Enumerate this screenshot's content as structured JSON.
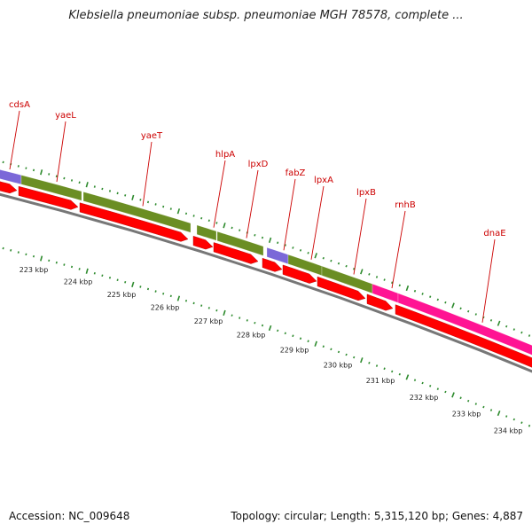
{
  "title": "Klebsiella pneumoniae subsp. pneumoniae MGH 78578, complete ...",
  "footer": {
    "accession": "Accession: NC_009648",
    "summary": "Topology: circular; Length: 5,315,120 bp; Genes: 4,887"
  },
  "colors": {
    "gene_label": "#cc0000",
    "cds": "#ff0000",
    "lavender": "#7b68d8",
    "olive": "#6b8e23",
    "magenta": "#ff1493",
    "backbone": "#777777",
    "ruler": "#2e8b2e"
  },
  "gene_labels": [
    "cdsA",
    "yaeL",
    "yaeT",
    "hlpA",
    "lpxD",
    "fabZ",
    "lpxA",
    "lpxB",
    "rnhB",
    "dnaE"
  ],
  "kbp_labels": [
    "223 kbp",
    "224 kbp",
    "225 kbp",
    "226 kbp",
    "227 kbp",
    "228 kbp",
    "229 kbp",
    "230 kbp",
    "231 kbp",
    "232 kbp",
    "233 kbp",
    "234 kbp"
  ]
}
